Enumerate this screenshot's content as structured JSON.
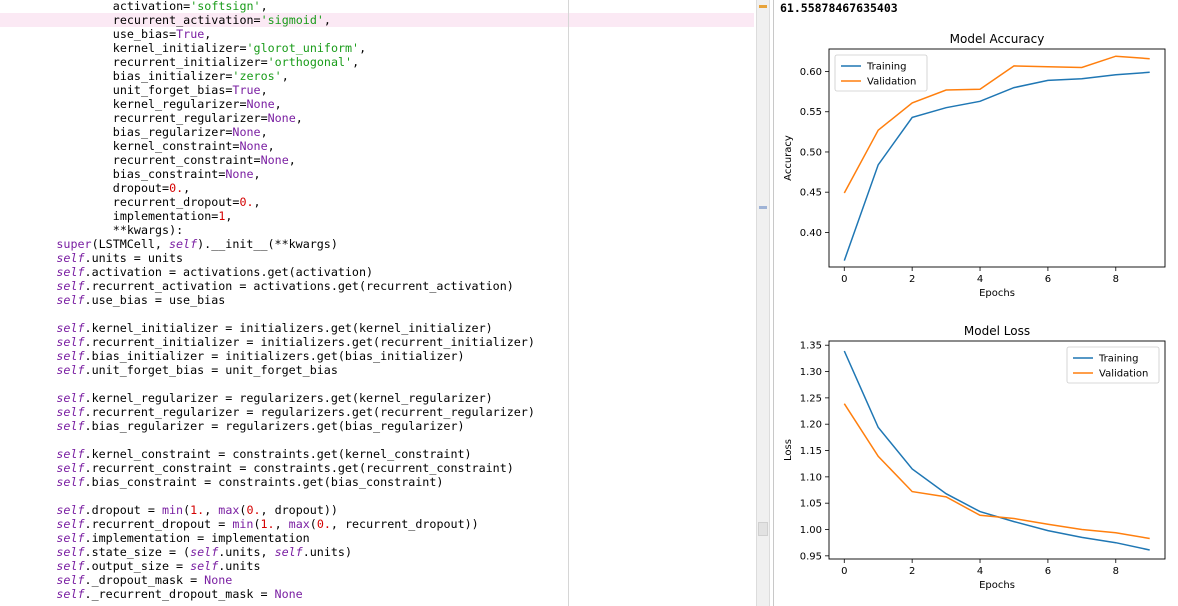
{
  "editor": {
    "lines": [
      {
        "indent": 16,
        "tokens": [
          {
            "t": "activation="
          },
          {
            "t": "'softsign'",
            "c": "str"
          },
          {
            "t": ","
          }
        ]
      },
      {
        "indent": 16,
        "highlight": true,
        "tokens": [
          {
            "t": "recurrent_activation="
          },
          {
            "t": "'sigmoid'",
            "c": "str"
          },
          {
            "t": ","
          }
        ]
      },
      {
        "indent": 16,
        "tokens": [
          {
            "t": "use_bias="
          },
          {
            "t": "True",
            "c": "kw"
          },
          {
            "t": ","
          }
        ]
      },
      {
        "indent": 16,
        "tokens": [
          {
            "t": "kernel_initializer="
          },
          {
            "t": "'glorot_uniform'",
            "c": "str"
          },
          {
            "t": ","
          }
        ]
      },
      {
        "indent": 16,
        "tokens": [
          {
            "t": "recurrent_initializer="
          },
          {
            "t": "'orthogonal'",
            "c": "str"
          },
          {
            "t": ","
          }
        ]
      },
      {
        "indent": 16,
        "tokens": [
          {
            "t": "bias_initializer="
          },
          {
            "t": "'zeros'",
            "c": "str"
          },
          {
            "t": ","
          }
        ]
      },
      {
        "indent": 16,
        "tokens": [
          {
            "t": "unit_forget_bias="
          },
          {
            "t": "True",
            "c": "kw"
          },
          {
            "t": ","
          }
        ]
      },
      {
        "indent": 16,
        "tokens": [
          {
            "t": "kernel_regularizer="
          },
          {
            "t": "None",
            "c": "kw"
          },
          {
            "t": ","
          }
        ]
      },
      {
        "indent": 16,
        "tokens": [
          {
            "t": "recurrent_regularizer="
          },
          {
            "t": "None",
            "c": "kw"
          },
          {
            "t": ","
          }
        ]
      },
      {
        "indent": 16,
        "tokens": [
          {
            "t": "bias_regularizer="
          },
          {
            "t": "None",
            "c": "kw"
          },
          {
            "t": ","
          }
        ]
      },
      {
        "indent": 16,
        "tokens": [
          {
            "t": "kernel_constraint="
          },
          {
            "t": "None",
            "c": "kw"
          },
          {
            "t": ","
          }
        ]
      },
      {
        "indent": 16,
        "tokens": [
          {
            "t": "recurrent_constraint="
          },
          {
            "t": "None",
            "c": "kw"
          },
          {
            "t": ","
          }
        ]
      },
      {
        "indent": 16,
        "tokens": [
          {
            "t": "bias_constraint="
          },
          {
            "t": "None",
            "c": "kw"
          },
          {
            "t": ","
          }
        ]
      },
      {
        "indent": 16,
        "tokens": [
          {
            "t": "dropout="
          },
          {
            "t": "0.",
            "c": "num"
          },
          {
            "t": ","
          }
        ]
      },
      {
        "indent": 16,
        "tokens": [
          {
            "t": "recurrent_dropout="
          },
          {
            "t": "0.",
            "c": "num"
          },
          {
            "t": ","
          }
        ]
      },
      {
        "indent": 16,
        "tokens": [
          {
            "t": "implementation="
          },
          {
            "t": "1",
            "c": "num"
          },
          {
            "t": ","
          }
        ]
      },
      {
        "indent": 16,
        "tokens": [
          {
            "t": "**kwargs):"
          }
        ]
      },
      {
        "indent": 8,
        "tokens": [
          {
            "t": "super",
            "c": "kw"
          },
          {
            "t": "(LSTMCell, "
          },
          {
            "t": "self",
            "c": "self"
          },
          {
            "t": ").__init__(**kwargs)"
          }
        ]
      },
      {
        "indent": 8,
        "tokens": [
          {
            "t": "self",
            "c": "self"
          },
          {
            "t": ".units = units"
          }
        ]
      },
      {
        "indent": 8,
        "tokens": [
          {
            "t": "self",
            "c": "self"
          },
          {
            "t": ".activation = activations.get(activation)"
          }
        ]
      },
      {
        "indent": 8,
        "tokens": [
          {
            "t": "self",
            "c": "self"
          },
          {
            "t": ".recurrent_activation = activations.get(recurrent_activation)"
          }
        ]
      },
      {
        "indent": 8,
        "tokens": [
          {
            "t": "self",
            "c": "self"
          },
          {
            "t": ".use_bias = use_bias"
          }
        ]
      },
      {
        "indent": 0,
        "tokens": []
      },
      {
        "indent": 8,
        "tokens": [
          {
            "t": "self",
            "c": "self"
          },
          {
            "t": ".kernel_initializer = initializers.get(kernel_initializer)"
          }
        ]
      },
      {
        "indent": 8,
        "tokens": [
          {
            "t": "self",
            "c": "self"
          },
          {
            "t": ".recurrent_initializer = initializers.get(recurrent_initializer)"
          }
        ]
      },
      {
        "indent": 8,
        "tokens": [
          {
            "t": "self",
            "c": "self"
          },
          {
            "t": ".bias_initializer = initializers.get(bias_initializer)"
          }
        ]
      },
      {
        "indent": 8,
        "tokens": [
          {
            "t": "self",
            "c": "self"
          },
          {
            "t": ".unit_forget_bias = unit_forget_bias"
          }
        ]
      },
      {
        "indent": 0,
        "tokens": []
      },
      {
        "indent": 8,
        "tokens": [
          {
            "t": "self",
            "c": "self"
          },
          {
            "t": ".kernel_regularizer = regularizers.get(kernel_regularizer)"
          }
        ]
      },
      {
        "indent": 8,
        "tokens": [
          {
            "t": "self",
            "c": "self"
          },
          {
            "t": ".recurrent_regularizer = regularizers.get(recurrent_regularizer)"
          }
        ]
      },
      {
        "indent": 8,
        "tokens": [
          {
            "t": "self",
            "c": "self"
          },
          {
            "t": ".bias_regularizer = regularizers.get(bias_regularizer)"
          }
        ]
      },
      {
        "indent": 0,
        "tokens": []
      },
      {
        "indent": 8,
        "tokens": [
          {
            "t": "self",
            "c": "self"
          },
          {
            "t": ".kernel_constraint = constraints.get(kernel_constraint)"
          }
        ]
      },
      {
        "indent": 8,
        "tokens": [
          {
            "t": "self",
            "c": "self"
          },
          {
            "t": ".recurrent_constraint = constraints.get(recurrent_constraint)"
          }
        ]
      },
      {
        "indent": 8,
        "tokens": [
          {
            "t": "self",
            "c": "self"
          },
          {
            "t": ".bias_constraint = constraints.get(bias_constraint)"
          }
        ]
      },
      {
        "indent": 0,
        "tokens": []
      },
      {
        "indent": 8,
        "tokens": [
          {
            "t": "self",
            "c": "self"
          },
          {
            "t": ".dropout = "
          },
          {
            "t": "min",
            "c": "kw"
          },
          {
            "t": "("
          },
          {
            "t": "1.",
            "c": "num"
          },
          {
            "t": ", "
          },
          {
            "t": "max",
            "c": "kw"
          },
          {
            "t": "("
          },
          {
            "t": "0.",
            "c": "num"
          },
          {
            "t": ", dropout))"
          }
        ]
      },
      {
        "indent": 8,
        "tokens": [
          {
            "t": "self",
            "c": "self"
          },
          {
            "t": ".recurrent_dropout = "
          },
          {
            "t": "min",
            "c": "kw"
          },
          {
            "t": "("
          },
          {
            "t": "1.",
            "c": "num"
          },
          {
            "t": ", "
          },
          {
            "t": "max",
            "c": "kw"
          },
          {
            "t": "("
          },
          {
            "t": "0.",
            "c": "num"
          },
          {
            "t": ", recurrent_dropout))"
          }
        ]
      },
      {
        "indent": 8,
        "tokens": [
          {
            "t": "self",
            "c": "self"
          },
          {
            "t": ".implementation = implementation"
          }
        ]
      },
      {
        "indent": 8,
        "tokens": [
          {
            "t": "self",
            "c": "self"
          },
          {
            "t": ".state_size = ("
          },
          {
            "t": "self",
            "c": "self"
          },
          {
            "t": ".units, "
          },
          {
            "t": "self",
            "c": "self"
          },
          {
            "t": ".units)"
          }
        ]
      },
      {
        "indent": 8,
        "tokens": [
          {
            "t": "self",
            "c": "self"
          },
          {
            "t": ".output_size = "
          },
          {
            "t": "self",
            "c": "self"
          },
          {
            "t": ".units"
          }
        ]
      },
      {
        "indent": 8,
        "tokens": [
          {
            "t": "self",
            "c": "self"
          },
          {
            "t": "._dropout_mask = "
          },
          {
            "t": "None",
            "c": "kw"
          }
        ]
      },
      {
        "indent": 8,
        "tokens": [
          {
            "t": "self",
            "c": "self"
          },
          {
            "t": "._recurrent_dropout_mask = "
          },
          {
            "t": "None",
            "c": "kw"
          }
        ]
      }
    ]
  },
  "output": {
    "text": "61.55878467635403"
  },
  "chart_data": [
    {
      "type": "line",
      "title": "Model Accuracy",
      "xlabel": "Epochs",
      "ylabel": "Accuracy",
      "x": [
        0,
        1,
        2,
        3,
        4,
        5,
        6,
        7,
        8,
        9
      ],
      "xlim": [
        -0.45,
        9.45
      ],
      "ylim": [
        0.357,
        0.628
      ],
      "xticks": [
        0,
        2,
        4,
        6,
        8
      ],
      "yticks": [
        0.4,
        0.45,
        0.5,
        0.55,
        0.6
      ],
      "ytick_labels": [
        "0.40",
        "0.45",
        "0.50",
        "0.55",
        "0.60"
      ],
      "legend": "upper-left",
      "series": [
        {
          "name": "Training",
          "color": "#1f77b4",
          "values": [
            0.365,
            0.484,
            0.543,
            0.555,
            0.563,
            0.58,
            0.589,
            0.591,
            0.596,
            0.599
          ]
        },
        {
          "name": "Validation",
          "color": "#ff7f0e",
          "values": [
            0.449,
            0.527,
            0.561,
            0.577,
            0.578,
            0.607,
            0.606,
            0.605,
            0.619,
            0.616
          ]
        }
      ]
    },
    {
      "type": "line",
      "title": "Model Loss",
      "xlabel": "Epochs",
      "ylabel": "Loss",
      "x": [
        0,
        1,
        2,
        3,
        4,
        5,
        6,
        7,
        8,
        9
      ],
      "xlim": [
        -0.45,
        9.45
      ],
      "ylim": [
        0.944,
        1.358
      ],
      "xticks": [
        0,
        2,
        4,
        6,
        8
      ],
      "yticks": [
        0.95,
        1.0,
        1.05,
        1.1,
        1.15,
        1.2,
        1.25,
        1.3,
        1.35
      ],
      "ytick_labels": [
        "0.95",
        "1.00",
        "1.05",
        "1.10",
        "1.15",
        "1.20",
        "1.25",
        "1.30",
        "1.35"
      ],
      "legend": "upper-right",
      "series": [
        {
          "name": "Training",
          "color": "#1f77b4",
          "values": [
            1.339,
            1.194,
            1.115,
            1.068,
            1.034,
            1.015,
            0.998,
            0.985,
            0.975,
            0.961
          ]
        },
        {
          "name": "Validation",
          "color": "#ff7f0e",
          "values": [
            1.239,
            1.139,
            1.072,
            1.062,
            1.027,
            1.021,
            1.01,
            1.0,
            0.994,
            0.983
          ]
        }
      ]
    }
  ]
}
